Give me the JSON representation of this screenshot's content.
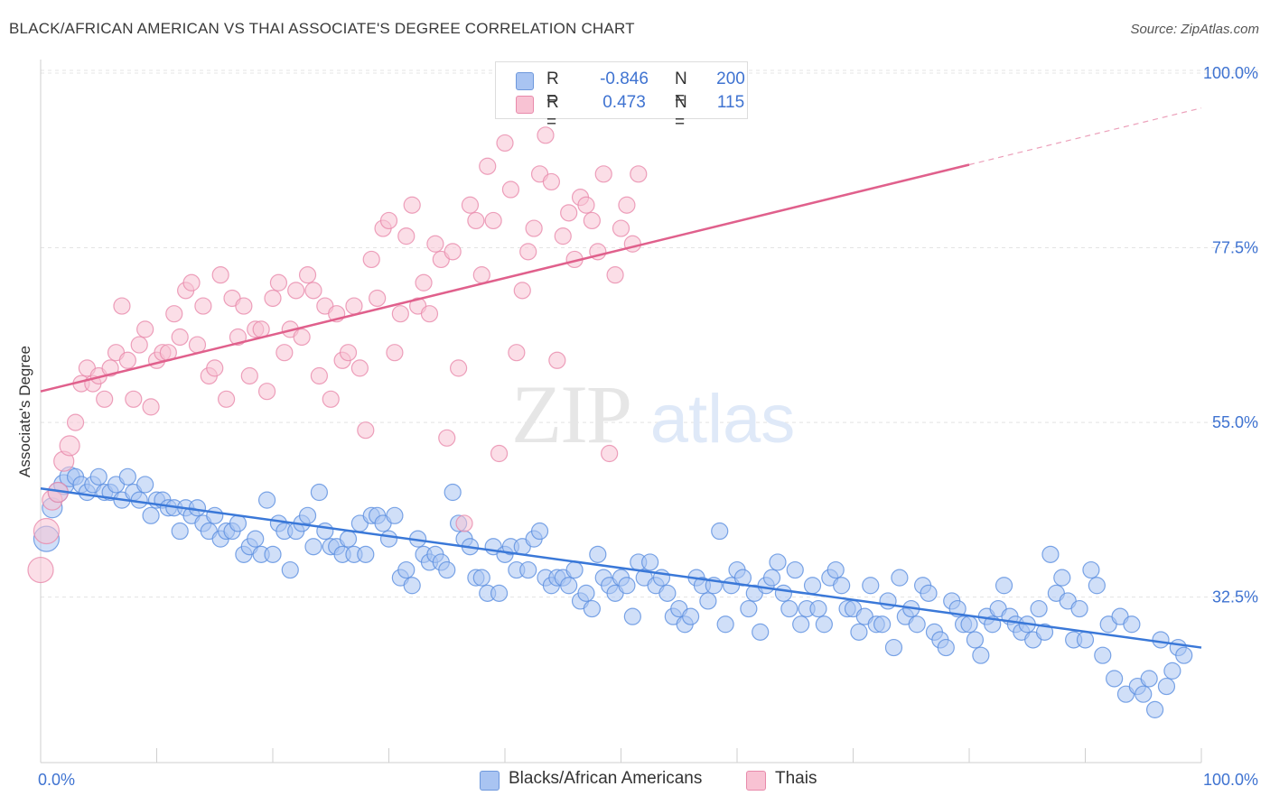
{
  "title": "BLACK/AFRICAN AMERICAN VS THAI ASSOCIATE'S DEGREE CORRELATION CHART",
  "source": "Source: ZipAtlas.com",
  "watermark": {
    "zip": "ZIP",
    "atlas": "atlas"
  },
  "legend": {
    "r_label": "R =",
    "n_label": "N =",
    "rows": [
      {
        "r": "-0.846",
        "n": "200",
        "color": "#a9c4f2",
        "border": "#6e98dc"
      },
      {
        "r": "0.473",
        "n": "115",
        "color": "#f8c2d3",
        "border": "#e88aab"
      }
    ]
  },
  "chart_data": {
    "type": "scatter",
    "xlabel": "",
    "ylabel": "Associate's Degree",
    "xlim": [
      0,
      100
    ],
    "ylim": [
      12,
      100
    ],
    "x_tick_labels": [
      "0.0%",
      "100.0%"
    ],
    "y_ticks": [
      32.5,
      55.0,
      77.5,
      100.0
    ],
    "y_tick_labels": [
      "32.5%",
      "55.0%",
      "77.5%",
      "100.0%"
    ],
    "grid": "horizontal dashed",
    "legend_position": "top-center",
    "series": [
      {
        "name": "Blacks/African Americans",
        "color": "#a9c4f2",
        "stroke": "#5b8ee0",
        "trend": {
          "x0": 0,
          "y0": 46.5,
          "x1": 100,
          "y1": 26.0,
          "color": "#3a78d8"
        },
        "points": [
          [
            0.5,
            40
          ],
          [
            1,
            44
          ],
          [
            1.5,
            46
          ],
          [
            2,
            47
          ],
          [
            2.5,
            48
          ],
          [
            3,
            48
          ],
          [
            3.5,
            47
          ],
          [
            4,
            46
          ],
          [
            4.5,
            47
          ],
          [
            5,
            48
          ],
          [
            5.5,
            46
          ],
          [
            6,
            46
          ],
          [
            6.5,
            47
          ],
          [
            7,
            45
          ],
          [
            7.5,
            48
          ],
          [
            8,
            46
          ],
          [
            8.5,
            45
          ],
          [
            9,
            47
          ],
          [
            9.5,
            43
          ],
          [
            10,
            45
          ],
          [
            10.5,
            45
          ],
          [
            11,
            44
          ],
          [
            11.5,
            44
          ],
          [
            12,
            41
          ],
          [
            12.5,
            44
          ],
          [
            13,
            43
          ],
          [
            13.5,
            44
          ],
          [
            14,
            42
          ],
          [
            14.5,
            41
          ],
          [
            15,
            43
          ],
          [
            15.5,
            40
          ],
          [
            16,
            41
          ],
          [
            16.5,
            41
          ],
          [
            17,
            42
          ],
          [
            17.5,
            38
          ],
          [
            18,
            39
          ],
          [
            18.5,
            40
          ],
          [
            19,
            38
          ],
          [
            19.5,
            45
          ],
          [
            20,
            38
          ],
          [
            20.5,
            42
          ],
          [
            21,
            41
          ],
          [
            21.5,
            36
          ],
          [
            22,
            41
          ],
          [
            22.5,
            42
          ],
          [
            23,
            43
          ],
          [
            23.5,
            39
          ],
          [
            24,
            46
          ],
          [
            24.5,
            41
          ],
          [
            25,
            39
          ],
          [
            25.5,
            39
          ],
          [
            26,
            38
          ],
          [
            26.5,
            40
          ],
          [
            27,
            38
          ],
          [
            27.5,
            42
          ],
          [
            28,
            38
          ],
          [
            28.5,
            43
          ],
          [
            29,
            43
          ],
          [
            29.5,
            42
          ],
          [
            30,
            40
          ],
          [
            30.5,
            43
          ],
          [
            31,
            35
          ],
          [
            31.5,
            36
          ],
          [
            32,
            34
          ],
          [
            32.5,
            40
          ],
          [
            33,
            38
          ],
          [
            33.5,
            37
          ],
          [
            34,
            38
          ],
          [
            34.5,
            37
          ],
          [
            35,
            36
          ],
          [
            35.5,
            46
          ],
          [
            36,
            42
          ],
          [
            36.5,
            40
          ],
          [
            37,
            39
          ],
          [
            37.5,
            35
          ],
          [
            38,
            35
          ],
          [
            38.5,
            33
          ],
          [
            39,
            39
          ],
          [
            39.5,
            33
          ],
          [
            40,
            38
          ],
          [
            40.5,
            39
          ],
          [
            41,
            36
          ],
          [
            41.5,
            39
          ],
          [
            42,
            36
          ],
          [
            42.5,
            40
          ],
          [
            43,
            41
          ],
          [
            43.5,
            35
          ],
          [
            44,
            34
          ],
          [
            44.5,
            35
          ],
          [
            45,
            35
          ],
          [
            45.5,
            34
          ],
          [
            46,
            36
          ],
          [
            46.5,
            32
          ],
          [
            47,
            33
          ],
          [
            47.5,
            31
          ],
          [
            48,
            38
          ],
          [
            48.5,
            35
          ],
          [
            49,
            34
          ],
          [
            49.5,
            33
          ],
          [
            50,
            35
          ],
          [
            50.5,
            34
          ],
          [
            51,
            30
          ],
          [
            51.5,
            37
          ],
          [
            52,
            35
          ],
          [
            52.5,
            37
          ],
          [
            53,
            34
          ],
          [
            53.5,
            35
          ],
          [
            54,
            33
          ],
          [
            54.5,
            30
          ],
          [
            55,
            31
          ],
          [
            55.5,
            29
          ],
          [
            56,
            30
          ],
          [
            56.5,
            35
          ],
          [
            57,
            34
          ],
          [
            57.5,
            32
          ],
          [
            58,
            34
          ],
          [
            58.5,
            41
          ],
          [
            59,
            29
          ],
          [
            59.5,
            34
          ],
          [
            60,
            36
          ],
          [
            60.5,
            35
          ],
          [
            61,
            31
          ],
          [
            61.5,
            33
          ],
          [
            62,
            28
          ],
          [
            62.5,
            34
          ],
          [
            63,
            35
          ],
          [
            63.5,
            37
          ],
          [
            64,
            33
          ],
          [
            64.5,
            31
          ],
          [
            65,
            36
          ],
          [
            65.5,
            29
          ],
          [
            66,
            31
          ],
          [
            66.5,
            34
          ],
          [
            67,
            31
          ],
          [
            67.5,
            29
          ],
          [
            68,
            35
          ],
          [
            68.5,
            36
          ],
          [
            69,
            34
          ],
          [
            69.5,
            31
          ],
          [
            70,
            31
          ],
          [
            70.5,
            28
          ],
          [
            71,
            30
          ],
          [
            71.5,
            34
          ],
          [
            72,
            29
          ],
          [
            72.5,
            29
          ],
          [
            73,
            32
          ],
          [
            73.5,
            26
          ],
          [
            74,
            35
          ],
          [
            74.5,
            30
          ],
          [
            75,
            31
          ],
          [
            75.5,
            29
          ],
          [
            76,
            34
          ],
          [
            76.5,
            33
          ],
          [
            77,
            28
          ],
          [
            77.5,
            27
          ],
          [
            78,
            26
          ],
          [
            78.5,
            32
          ],
          [
            79,
            31
          ],
          [
            79.5,
            29
          ],
          [
            80,
            29
          ],
          [
            80.5,
            27
          ],
          [
            81,
            25
          ],
          [
            81.5,
            30
          ],
          [
            82,
            29
          ],
          [
            82.5,
            31
          ],
          [
            83,
            34
          ],
          [
            83.5,
            30
          ],
          [
            84,
            29
          ],
          [
            84.5,
            28
          ],
          [
            85,
            29
          ],
          [
            85.5,
            27
          ],
          [
            86,
            31
          ],
          [
            86.5,
            28
          ],
          [
            87,
            38
          ],
          [
            87.5,
            33
          ],
          [
            88,
            35
          ],
          [
            88.5,
            32
          ],
          [
            89,
            27
          ],
          [
            89.5,
            31
          ],
          [
            90,
            27
          ],
          [
            90.5,
            36
          ],
          [
            91,
            34
          ],
          [
            91.5,
            25
          ],
          [
            92,
            29
          ],
          [
            92.5,
            22
          ],
          [
            93,
            30
          ],
          [
            93.5,
            20
          ],
          [
            94,
            29
          ],
          [
            94.5,
            21
          ],
          [
            95,
            20
          ],
          [
            95.5,
            22
          ],
          [
            96,
            18
          ],
          [
            96.5,
            27
          ],
          [
            97,
            21
          ],
          [
            97.5,
            23
          ],
          [
            98,
            26
          ],
          [
            98.5,
            25
          ]
        ]
      },
      {
        "name": "Thais",
        "color": "#f8c2d3",
        "stroke": "#e88aab",
        "trend": {
          "x0": 0,
          "y0": 59.0,
          "x1": 100,
          "y1": 95.5,
          "solid_until": 80,
          "color": "#e0608c"
        },
        "points": [
          [
            0,
            36
          ],
          [
            0.5,
            41
          ],
          [
            1,
            45
          ],
          [
            1.5,
            46
          ],
          [
            2,
            50
          ],
          [
            2.5,
            52
          ],
          [
            3,
            55
          ],
          [
            3.5,
            60
          ],
          [
            4,
            62
          ],
          [
            4.5,
            60
          ],
          [
            5,
            61
          ],
          [
            5.5,
            58
          ],
          [
            6,
            62
          ],
          [
            6.5,
            64
          ],
          [
            7,
            70
          ],
          [
            7.5,
            63
          ],
          [
            8,
            58
          ],
          [
            8.5,
            65
          ],
          [
            9,
            67
          ],
          [
            9.5,
            57
          ],
          [
            10,
            63
          ],
          [
            10.5,
            64
          ],
          [
            11,
            64
          ],
          [
            11.5,
            69
          ],
          [
            12,
            66
          ],
          [
            12.5,
            72
          ],
          [
            13,
            73
          ],
          [
            13.5,
            65
          ],
          [
            14,
            70
          ],
          [
            14.5,
            61
          ],
          [
            15,
            62
          ],
          [
            15.5,
            74
          ],
          [
            16,
            58
          ],
          [
            16.5,
            71
          ],
          [
            17,
            66
          ],
          [
            17.5,
            70
          ],
          [
            18,
            61
          ],
          [
            18.5,
            67
          ],
          [
            19,
            67
          ],
          [
            19.5,
            59
          ],
          [
            20,
            71
          ],
          [
            20.5,
            73
          ],
          [
            21,
            64
          ],
          [
            21.5,
            67
          ],
          [
            22,
            72
          ],
          [
            22.5,
            66
          ],
          [
            23,
            74
          ],
          [
            23.5,
            72
          ],
          [
            24,
            61
          ],
          [
            24.5,
            70
          ],
          [
            25,
            58
          ],
          [
            25.5,
            69
          ],
          [
            26,
            63
          ],
          [
            26.5,
            64
          ],
          [
            27,
            70
          ],
          [
            27.5,
            62
          ],
          [
            28,
            54
          ],
          [
            28.5,
            76
          ],
          [
            29,
            71
          ],
          [
            29.5,
            80
          ],
          [
            30,
            81
          ],
          [
            30.5,
            64
          ],
          [
            31,
            69
          ],
          [
            31.5,
            79
          ],
          [
            32,
            83
          ],
          [
            32.5,
            70
          ],
          [
            33,
            73
          ],
          [
            33.5,
            69
          ],
          [
            34,
            78
          ],
          [
            34.5,
            76
          ],
          [
            35,
            53
          ],
          [
            35.5,
            77
          ],
          [
            36,
            62
          ],
          [
            36.5,
            42
          ],
          [
            37,
            83
          ],
          [
            37.5,
            81
          ],
          [
            38,
            74
          ],
          [
            38.5,
            88
          ],
          [
            39,
            81
          ],
          [
            39.5,
            51
          ],
          [
            40,
            91
          ],
          [
            40.5,
            85
          ],
          [
            41,
            64
          ],
          [
            41.5,
            72
          ],
          [
            42,
            77
          ],
          [
            42.5,
            80
          ],
          [
            43,
            87
          ],
          [
            43.5,
            92
          ],
          [
            44,
            86
          ],
          [
            44.5,
            63
          ],
          [
            45,
            79
          ],
          [
            45.5,
            82
          ],
          [
            46,
            76
          ],
          [
            46.5,
            84
          ],
          [
            47,
            83
          ],
          [
            47.5,
            81
          ],
          [
            48,
            77
          ],
          [
            48.5,
            87
          ],
          [
            49,
            51
          ],
          [
            49.5,
            74
          ],
          [
            50,
            80
          ],
          [
            50.5,
            83
          ],
          [
            51,
            78
          ],
          [
            51.5,
            87
          ]
        ]
      }
    ]
  }
}
